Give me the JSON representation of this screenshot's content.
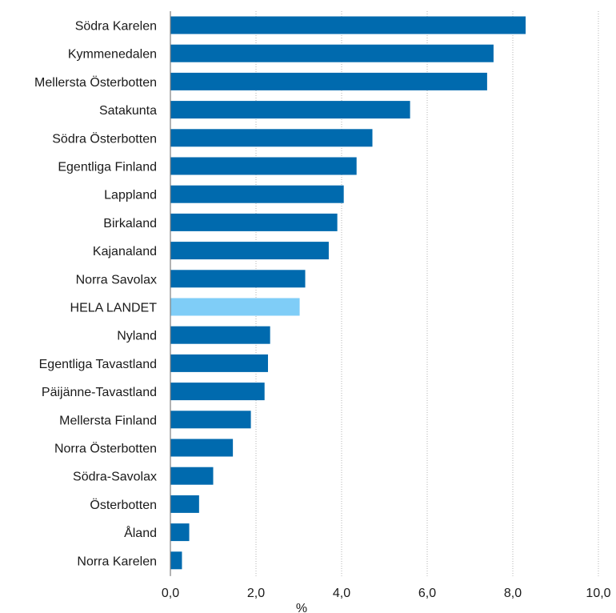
{
  "chart_data": {
    "type": "bar",
    "orientation": "horizontal",
    "categories": [
      "Södra Karelen",
      "Kymmenedalen",
      "Mellersta Österbotten",
      "Satakunta",
      "Södra Österbotten",
      "Egentliga Finland",
      "Lappland",
      "Birkaland",
      "Kajanaland",
      "Norra Savolax",
      "HELA LANDET",
      "Nyland",
      "Egentliga Tavastland",
      "Päijänne-Tavastland",
      "Mellersta Finland",
      "Norra Österbotten",
      "Södra-Savolax",
      "Österbotten",
      "Åland",
      "Norra Karelen"
    ],
    "values": [
      8.3,
      7.55,
      7.4,
      5.6,
      4.72,
      4.35,
      4.05,
      3.9,
      3.7,
      3.15,
      3.02,
      2.33,
      2.28,
      2.2,
      1.88,
      1.46,
      1.0,
      0.67,
      0.44,
      0.27
    ],
    "highlight_category": "HELA LANDET",
    "colors": {
      "bar": "#006AAE",
      "highlight": "#7FCDF7",
      "gridline": "#b3b3b3",
      "axis": "#7f7f7f",
      "text": "#1a1a1a"
    },
    "xlim": [
      0,
      10
    ],
    "xticks": [
      0,
      2,
      4,
      6,
      8,
      10
    ],
    "xtick_labels": [
      "0,0",
      "2,0",
      "4,0",
      "6,0",
      "8,0",
      "10,0"
    ],
    "xlabel": "%",
    "ylabel": "",
    "title": "",
    "grid": "vertical-dotted",
    "legend": "none"
  }
}
